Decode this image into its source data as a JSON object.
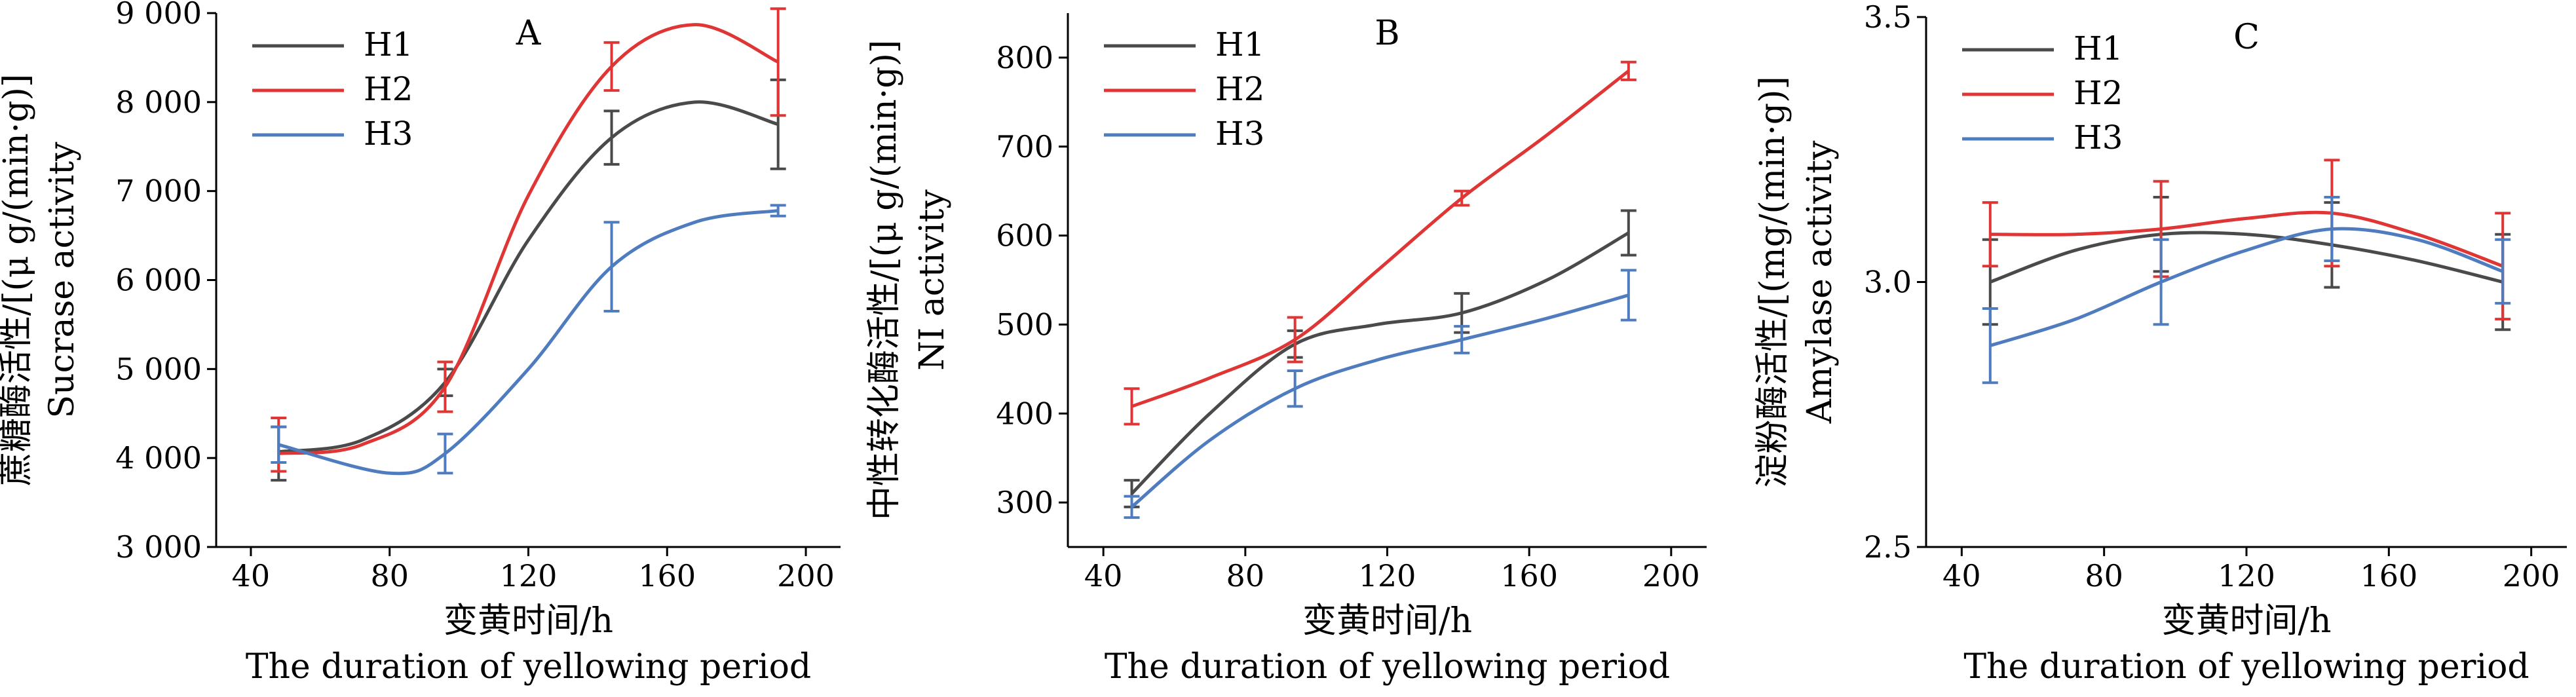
{
  "colors": {
    "H1": "#4a4a4a",
    "H2": "#e03535",
    "H3": "#4f7cbf",
    "axis": "#000000"
  },
  "chart_data": [
    {
      "type": "line",
      "panel_label": "A",
      "x_title_cn": "变黄时间/h",
      "x_title_en": "The duration of yellowing period",
      "y_title_cn": "蔗糖酶活性/[(μ g/(min·g)]",
      "y_title_en": "Sucrase activity",
      "xlim": [
        30,
        210
      ],
      "ylim": [
        3000,
        9000
      ],
      "x_ticks": [
        40,
        80,
        120,
        160,
        200
      ],
      "x_tick_labels": [
        "40",
        "80",
        "120",
        "160",
        "200"
      ],
      "y_ticks": [
        3000,
        4000,
        5000,
        6000,
        7000,
        8000,
        9000
      ],
      "y_tick_labels": [
        "3 000",
        "4 000",
        "5 000",
        "6 000",
        "7 000",
        "8 000",
        "9 000"
      ],
      "legend_position": "top-left",
      "x": [
        48,
        96,
        144,
        192
      ],
      "series": [
        {
          "name": "H1",
          "color": "#4a4a4a",
          "values": [
            4050,
            4850,
            7600,
            7750
          ],
          "errors": [
            300,
            150,
            300,
            500
          ],
          "curve_x": [
            48,
            72,
            96,
            120,
            144,
            168,
            192
          ],
          "curve_y": [
            4070,
            4200,
            4850,
            6450,
            7600,
            8000,
            7750
          ]
        },
        {
          "name": "H2",
          "color": "#e03535",
          "values": [
            4150,
            4800,
            8400,
            8450
          ],
          "errors": [
            300,
            280,
            270,
            600
          ],
          "curve_x": [
            48,
            72,
            96,
            120,
            144,
            168,
            192
          ],
          "curve_y": [
            4050,
            4150,
            4800,
            6950,
            8400,
            8870,
            8450
          ]
        },
        {
          "name": "H3",
          "color": "#4f7cbf",
          "values": [
            4150,
            4050,
            6150,
            6780
          ],
          "errors": [
            200,
            220,
            500,
            60
          ],
          "curve_x": [
            48,
            80,
            96,
            120,
            144,
            168,
            192
          ],
          "curve_y": [
            4150,
            3830,
            4050,
            5000,
            6150,
            6650,
            6780
          ]
        }
      ]
    },
    {
      "type": "line",
      "panel_label": "B",
      "x_title_cn": "变黄时间/h",
      "x_title_en": "The duration of yellowing period",
      "y_title_cn": "中性转化酶活性/[(μ g/(min·g)]",
      "y_title_en": "NI activity",
      "xlim": [
        30,
        210
      ],
      "ylim": [
        250,
        850
      ],
      "x_ticks": [
        40,
        80,
        120,
        160,
        200
      ],
      "x_tick_labels": [
        "40",
        "80",
        "120",
        "160",
        "200"
      ],
      "y_ticks": [
        300,
        400,
        500,
        600,
        700,
        800
      ],
      "y_tick_labels": [
        "300",
        "400",
        "500",
        "600",
        "700",
        "800"
      ],
      "legend_position": "top-left",
      "x": [
        48,
        94,
        141,
        188
      ],
      "series": [
        {
          "name": "H1",
          "color": "#4a4a4a",
          "values": [
            310,
            478,
            513,
            603
          ],
          "errors": [
            15,
            15,
            22,
            25
          ],
          "curve_x": [
            48,
            70,
            94,
            117,
            141,
            165,
            188
          ],
          "curve_y": [
            310,
            400,
            478,
            500,
            513,
            550,
            603
          ]
        },
        {
          "name": "H2",
          "color": "#e03535",
          "values": [
            408,
            483,
            642,
            785
          ],
          "errors": [
            20,
            25,
            8,
            10
          ],
          "curve_x": [
            48,
            70,
            94,
            117,
            141,
            165,
            188
          ],
          "curve_y": [
            408,
            440,
            483,
            560,
            642,
            713,
            785
          ]
        },
        {
          "name": "H3",
          "color": "#4f7cbf",
          "values": [
            295,
            428,
            483,
            533
          ],
          "errors": [
            12,
            20,
            15,
            28
          ],
          "curve_x": [
            48,
            70,
            94,
            117,
            141,
            165,
            188
          ],
          "curve_y": [
            295,
            370,
            428,
            460,
            483,
            507,
            533
          ]
        }
      ]
    },
    {
      "type": "line",
      "panel_label": "C",
      "x_title_cn": "变黄时间/h",
      "x_title_en": "The duration of yellowing period",
      "y_title_cn": "淀粉酶活性/[(mg/(min·g)]",
      "y_title_en": "Amylase activity",
      "xlim": [
        30,
        210
      ],
      "ylim": [
        2.5,
        3.5
      ],
      "x_ticks": [
        40,
        80,
        120,
        160,
        200
      ],
      "x_tick_labels": [
        "40",
        "80",
        "120",
        "160",
        "200"
      ],
      "y_ticks": [
        2.5,
        3.0,
        3.5
      ],
      "y_tick_labels": [
        "2.5",
        "3.0",
        "3.5"
      ],
      "legend_position": "top-left",
      "x": [
        48,
        96,
        144,
        192
      ],
      "series": [
        {
          "name": "H1",
          "color": "#4a4a4a",
          "values": [
            3.0,
            3.09,
            3.07,
            3.0
          ],
          "errors": [
            0.08,
            0.07,
            0.08,
            0.09
          ],
          "curve_x": [
            48,
            72,
            96,
            120,
            144,
            168,
            192
          ],
          "curve_y": [
            3.0,
            3.06,
            3.09,
            3.09,
            3.07,
            3.04,
            3.0
          ]
        },
        {
          "name": "H2",
          "color": "#e03535",
          "values": [
            3.09,
            3.1,
            3.13,
            3.03
          ],
          "errors": [
            0.06,
            0.09,
            0.1,
            0.1
          ],
          "curve_x": [
            48,
            72,
            96,
            120,
            144,
            168,
            192
          ],
          "curve_y": [
            3.09,
            3.09,
            3.1,
            3.12,
            3.13,
            3.09,
            3.03
          ]
        },
        {
          "name": "H3",
          "color": "#4f7cbf",
          "values": [
            2.88,
            3.0,
            3.1,
            3.02
          ],
          "errors": [
            0.07,
            0.08,
            0.06,
            0.06
          ],
          "curve_x": [
            48,
            72,
            96,
            120,
            144,
            168,
            192
          ],
          "curve_y": [
            2.88,
            2.93,
            3.0,
            3.06,
            3.1,
            3.08,
            3.02
          ]
        }
      ]
    }
  ]
}
